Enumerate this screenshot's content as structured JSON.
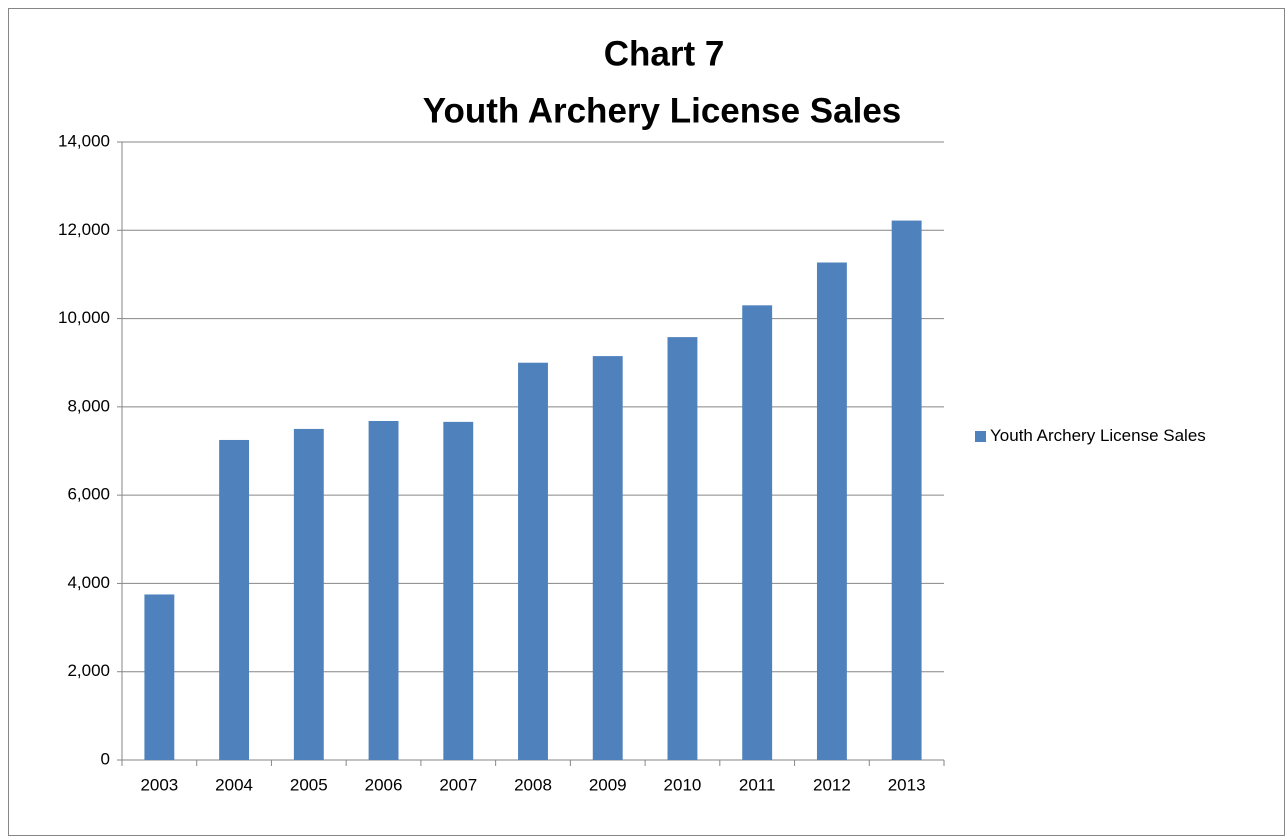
{
  "chart_data": {
    "type": "bar",
    "title": "Chart 7",
    "subtitle": "Youth Archery License Sales",
    "categories": [
      "2003",
      "2004",
      "2005",
      "2006",
      "2007",
      "2008",
      "2009",
      "2010",
      "2011",
      "2012",
      "2013"
    ],
    "series": [
      {
        "name": "Youth Archery License Sales",
        "color": "#4f81bd",
        "values": [
          3750,
          7250,
          7500,
          7680,
          7660,
          9000,
          9150,
          9580,
          10300,
          11270,
          12220
        ]
      }
    ],
    "ylim": [
      0,
      14000
    ],
    "yticks": [
      0,
      {
        "value": 2000,
        "label": "2,000"
      },
      {
        "value": 4000,
        "label": "4,000"
      },
      {
        "value": 6000,
        "label": "6,000"
      },
      {
        "value": 8000,
        "label": "8,000"
      },
      {
        "value": 10000,
        "label": "10,000"
      },
      {
        "value": 12000,
        "label": "12,000"
      },
      {
        "value": 14000,
        "label": "14,000"
      }
    ],
    "grid": true,
    "legend": "right"
  }
}
